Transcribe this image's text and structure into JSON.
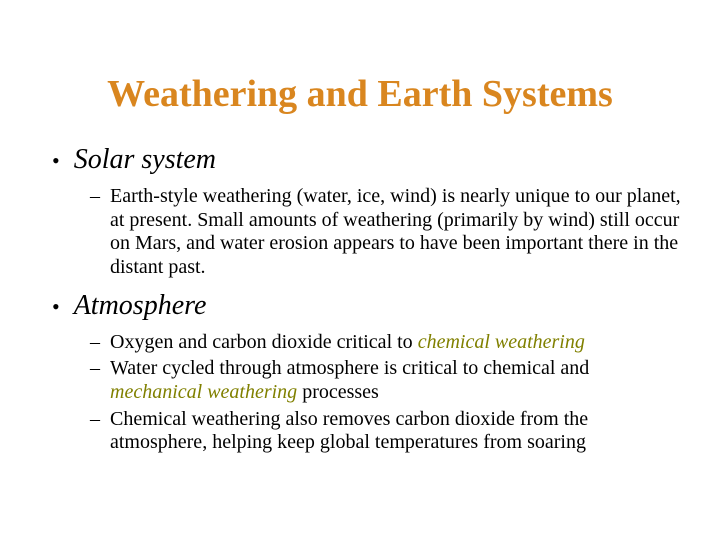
{
  "title": {
    "text": "Weathering and Earth Systems",
    "color": "#d9861f",
    "fontsize": 38
  },
  "body": {
    "text_color": "#000000",
    "emphasis_color": "#808000",
    "level1_fontsize": 28,
    "level2_fontsize": 20,
    "background_color": "#ffffff"
  },
  "sections": [
    {
      "heading": "Solar system",
      "items": [
        {
          "parts": [
            {
              "text": "Earth-style weathering (water, ice, wind) is nearly unique to our planet, at present.  Small amounts of weathering (primarily by wind) still occur on Mars, and water erosion appears to have been important there in the distant past.",
              "emph": false
            }
          ]
        }
      ]
    },
    {
      "heading": "Atmosphere",
      "items": [
        {
          "parts": [
            {
              "text": "Oxygen and carbon dioxide critical to ",
              "emph": false
            },
            {
              "text": "chemical weathering",
              "emph": true
            }
          ]
        },
        {
          "parts": [
            {
              "text": "Water cycled through atmosphere is critical to chemical and ",
              "emph": false
            },
            {
              "text": "mechanical weathering",
              "emph": true
            },
            {
              "text": " processes",
              "emph": false
            }
          ]
        },
        {
          "parts": [
            {
              "text": "Chemical weathering also removes carbon dioxide from the atmosphere, helping keep global temperatures from soaring",
              "emph": false
            }
          ]
        }
      ]
    }
  ]
}
